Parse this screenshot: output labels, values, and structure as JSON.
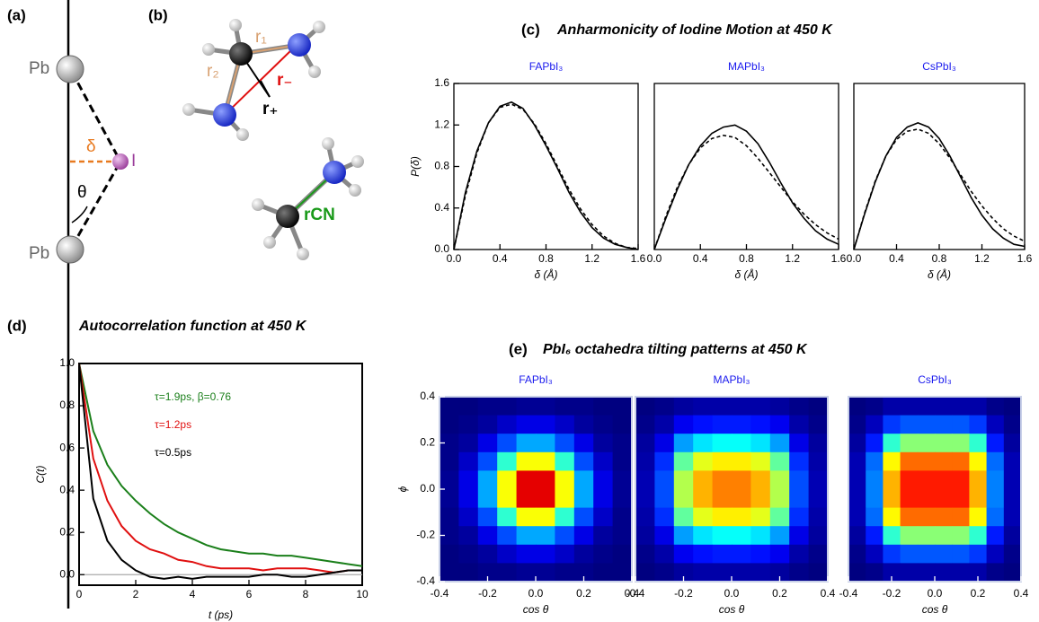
{
  "panel_labels": [
    "(a)",
    "(b)",
    "(c)",
    "(d)",
    "(e)"
  ],
  "section_titles": [
    "Anharmonicity of Iodine Motion at 450 K",
    "Autocorrelation function at 450 K",
    "PbI₆ octahedra tilting patterns at 450 K"
  ],
  "diagram_a": {
    "labels": [
      "Pb",
      "Pb",
      "δ",
      "I",
      "θ"
    ]
  },
  "diagram_b": {
    "labels": [
      "r₁",
      "r₂",
      "r₋",
      "r₊",
      "rCN"
    ]
  },
  "chart_data": [
    {
      "type": "line",
      "title": "FAPbI₃",
      "x_label": "δ (Å)",
      "y_label": "P(δ)",
      "x": [
        0,
        0.1,
        0.2,
        0.3,
        0.4,
        0.5,
        0.6,
        0.7,
        0.8,
        0.9,
        1.0,
        1.1,
        1.2,
        1.3,
        1.4,
        1.5,
        1.6
      ],
      "series": [
        {
          "color": "#000000",
          "style": "solid",
          "values": [
            0,
            0.55,
            0.95,
            1.22,
            1.38,
            1.42,
            1.36,
            1.2,
            1.0,
            0.78,
            0.55,
            0.36,
            0.21,
            0.11,
            0.05,
            0.02,
            0.0
          ]
        },
        {
          "color": "#000000",
          "style": "dashed",
          "values": [
            0,
            0.52,
            0.93,
            1.22,
            1.37,
            1.4,
            1.35,
            1.21,
            1.02,
            0.8,
            0.58,
            0.39,
            0.24,
            0.13,
            0.06,
            0.02,
            0.01
          ]
        }
      ],
      "xlim": [
        0,
        1.6
      ],
      "xticks": [
        {
          "value": 0,
          "label": "0.0"
        },
        0.4,
        0.8,
        1.2,
        1.6
      ],
      "ylim": [
        0,
        1.6
      ],
      "yticks": [
        {
          "value": 0,
          "label": "0.0"
        },
        0.4,
        0.8,
        1.2,
        1.6
      ]
    },
    {
      "type": "line",
      "title": "MAPbI₃",
      "x_label": "δ (Å)",
      "x": [
        0,
        0.1,
        0.2,
        0.3,
        0.4,
        0.5,
        0.6,
        0.7,
        0.8,
        0.9,
        1.0,
        1.1,
        1.2,
        1.3,
        1.4,
        1.5,
        1.6
      ],
      "series": [
        {
          "color": "#000000",
          "style": "solid",
          "values": [
            0,
            0.3,
            0.58,
            0.82,
            1.0,
            1.12,
            1.18,
            1.2,
            1.14,
            1.02,
            0.84,
            0.64,
            0.45,
            0.3,
            0.18,
            0.1,
            0.05
          ]
        },
        {
          "color": "#000000",
          "style": "dashed",
          "values": [
            0,
            0.32,
            0.6,
            0.82,
            0.98,
            1.07,
            1.1,
            1.08,
            1.0,
            0.88,
            0.74,
            0.6,
            0.46,
            0.34,
            0.24,
            0.16,
            0.1
          ]
        }
      ],
      "xlim": [
        0,
        1.6
      ],
      "xticks": [
        {
          "value": 0,
          "label": "0.0"
        },
        0.4,
        0.8,
        1.2,
        1.6
      ],
      "ylim": [
        0,
        1.6
      ]
    },
    {
      "type": "line",
      "title": "CsPbI₃",
      "x_label": "δ (Å)",
      "x": [
        0,
        0.1,
        0.2,
        0.3,
        0.4,
        0.5,
        0.6,
        0.7,
        0.8,
        0.9,
        1.0,
        1.1,
        1.2,
        1.3,
        1.4,
        1.5,
        1.6
      ],
      "series": [
        {
          "color": "#000000",
          "style": "solid",
          "values": [
            0,
            0.34,
            0.65,
            0.9,
            1.08,
            1.18,
            1.22,
            1.18,
            1.07,
            0.9,
            0.7,
            0.5,
            0.33,
            0.2,
            0.11,
            0.05,
            0.03
          ]
        },
        {
          "color": "#000000",
          "style": "dashed",
          "values": [
            0,
            0.35,
            0.66,
            0.9,
            1.06,
            1.14,
            1.16,
            1.12,
            1.02,
            0.88,
            0.72,
            0.56,
            0.42,
            0.3,
            0.2,
            0.13,
            0.08
          ]
        }
      ],
      "xlim": [
        0,
        1.6
      ],
      "xticks": [
        {
          "value": 0,
          "label": "0.0"
        },
        0.4,
        0.8,
        1.2,
        1.6
      ],
      "ylim": [
        0,
        1.6
      ]
    },
    {
      "type": "line",
      "x_label": "t (ps)",
      "y_label": "C(t)",
      "x": [
        0,
        0.5,
        1,
        1.5,
        2,
        2.5,
        3,
        3.5,
        4,
        4.5,
        5,
        5.5,
        6,
        6.5,
        7,
        7.5,
        8,
        8.5,
        9,
        9.5,
        10
      ],
      "series": [
        {
          "color": "#1a7f1a",
          "style": "solid",
          "values": [
            1,
            0.68,
            0.52,
            0.42,
            0.35,
            0.29,
            0.24,
            0.2,
            0.17,
            0.14,
            0.12,
            0.11,
            0.1,
            0.1,
            0.09,
            0.09,
            0.08,
            0.07,
            0.06,
            0.05,
            0.04
          ]
        },
        {
          "color": "#e01010",
          "style": "solid",
          "values": [
            1,
            0.55,
            0.35,
            0.23,
            0.16,
            0.12,
            0.1,
            0.07,
            0.06,
            0.04,
            0.03,
            0.03,
            0.03,
            0.02,
            0.03,
            0.03,
            0.03,
            0.02,
            0.01,
            0.02,
            0.02
          ]
        },
        {
          "color": "#000000",
          "style": "solid",
          "values": [
            1,
            0.36,
            0.16,
            0.07,
            0.02,
            -0.01,
            -0.02,
            -0.01,
            -0.02,
            -0.01,
            -0.01,
            -0.01,
            -0.01,
            0.0,
            0.0,
            -0.01,
            -0.01,
            0.0,
            0.01,
            0.02,
            0.02
          ]
        }
      ],
      "annotations": [
        {
          "text": "τ=1.9ps, β=0.76",
          "color": "#1a7f1a"
        },
        {
          "text": "τ=1.2ps",
          "color": "#e01010"
        },
        {
          "text": "τ=0.5ps",
          "color": "#000000"
        }
      ],
      "xlim": [
        0,
        10
      ],
      "xticks": [
        0,
        2,
        4,
        6,
        8,
        10
      ],
      "ylim": [
        -0.05,
        1.0
      ],
      "yticks": [
        {
          "value": 0,
          "label": "0.0"
        },
        0.2,
        0.4,
        0.6,
        0.8,
        {
          "value": 1,
          "label": "1.0"
        }
      ]
    },
    {
      "type": "heatmap",
      "title": "FAPbI₃",
      "x_label": "cos θ",
      "y_label": "ϕ",
      "xlim": [
        -0.4,
        0.4
      ],
      "xticks": [
        -0.4,
        -0.2,
        {
          "value": 0,
          "label": "0.0"
        },
        0.2,
        0.4
      ],
      "ylim": [
        -0.4,
        0.4
      ],
      "yticks": [
        -0.4,
        -0.2,
        {
          "value": 0,
          "label": "0.0"
        },
        0.2,
        0.4
      ],
      "z": [
        [
          0,
          0,
          0.01,
          0.01,
          0.02,
          0.02,
          0.01,
          0.01,
          0,
          0
        ],
        [
          0,
          0.01,
          0.03,
          0.07,
          0.1,
          0.1,
          0.07,
          0.03,
          0.01,
          0
        ],
        [
          0.01,
          0.03,
          0.1,
          0.2,
          0.29,
          0.29,
          0.2,
          0.1,
          0.03,
          0.01
        ],
        [
          0.01,
          0.07,
          0.2,
          0.42,
          0.62,
          0.62,
          0.42,
          0.2,
          0.07,
          0.01
        ],
        [
          0.02,
          0.1,
          0.29,
          0.62,
          0.9,
          0.9,
          0.62,
          0.29,
          0.1,
          0.02
        ],
        [
          0.02,
          0.1,
          0.29,
          0.62,
          0.9,
          0.9,
          0.62,
          0.29,
          0.1,
          0.02
        ],
        [
          0.01,
          0.07,
          0.2,
          0.42,
          0.62,
          0.62,
          0.42,
          0.2,
          0.07,
          0.01
        ],
        [
          0.01,
          0.03,
          0.1,
          0.2,
          0.29,
          0.29,
          0.2,
          0.1,
          0.03,
          0.01
        ],
        [
          0,
          0.01,
          0.03,
          0.07,
          0.1,
          0.1,
          0.07,
          0.03,
          0.01,
          0
        ],
        [
          0,
          0,
          0.01,
          0.01,
          0.02,
          0.02,
          0.01,
          0.01,
          0,
          0
        ]
      ]
    },
    {
      "type": "heatmap",
      "title": "MAPbI₃",
      "x_label": "cos θ",
      "xlim": [
        -0.4,
        0.4
      ],
      "xticks": [
        -0.4,
        -0.2,
        {
          "value": 0,
          "label": "0.0"
        },
        0.2,
        0.4
      ],
      "ylim": [
        -0.4,
        0.4
      ],
      "z": [
        [
          0,
          0.01,
          0.03,
          0.04,
          0.04,
          0.04,
          0.04,
          0.03,
          0.01,
          0
        ],
        [
          0.01,
          0.04,
          0.11,
          0.14,
          0.15,
          0.15,
          0.14,
          0.11,
          0.04,
          0.01
        ],
        [
          0.03,
          0.1,
          0.28,
          0.35,
          0.38,
          0.38,
          0.35,
          0.28,
          0.1,
          0.03
        ],
        [
          0.04,
          0.17,
          0.47,
          0.6,
          0.64,
          0.64,
          0.6,
          0.47,
          0.17,
          0.04
        ],
        [
          0.05,
          0.2,
          0.55,
          0.7,
          0.75,
          0.75,
          0.7,
          0.55,
          0.2,
          0.05
        ],
        [
          0.05,
          0.2,
          0.55,
          0.7,
          0.75,
          0.75,
          0.7,
          0.55,
          0.2,
          0.05
        ],
        [
          0.04,
          0.17,
          0.47,
          0.6,
          0.64,
          0.64,
          0.6,
          0.47,
          0.17,
          0.04
        ],
        [
          0.03,
          0.1,
          0.28,
          0.35,
          0.38,
          0.38,
          0.35,
          0.28,
          0.1,
          0.03
        ],
        [
          0.01,
          0.04,
          0.11,
          0.14,
          0.15,
          0.15,
          0.14,
          0.11,
          0.04,
          0.01
        ],
        [
          0,
          0.01,
          0.03,
          0.04,
          0.04,
          0.04,
          0.04,
          0.03,
          0.01,
          0
        ]
      ]
    },
    {
      "type": "heatmap",
      "title": "CsPbI₃",
      "x_label": "cos θ",
      "xlim": [
        -0.4,
        0.4
      ],
      "xticks": [
        -0.4,
        -0.2,
        {
          "value": 0,
          "label": "0.0"
        },
        0.2,
        0.4
      ],
      "ylim": [
        -0.4,
        0.4
      ],
      "z": [
        [
          0,
          0.01,
          0.04,
          0.04,
          0.04,
          0.04,
          0.04,
          0.04,
          0.01,
          0
        ],
        [
          0.01,
          0.06,
          0.18,
          0.21,
          0.21,
          0.21,
          0.21,
          0.18,
          0.06,
          0.01
        ],
        [
          0.03,
          0.15,
          0.42,
          0.51,
          0.51,
          0.51,
          0.51,
          0.42,
          0.15,
          0.03
        ],
        [
          0.05,
          0.23,
          0.63,
          0.77,
          0.77,
          0.77,
          0.77,
          0.63,
          0.23,
          0.05
        ],
        [
          0.05,
          0.25,
          0.7,
          0.85,
          0.85,
          0.85,
          0.85,
          0.7,
          0.25,
          0.05
        ],
        [
          0.05,
          0.25,
          0.7,
          0.85,
          0.85,
          0.85,
          0.85,
          0.7,
          0.25,
          0.05
        ],
        [
          0.05,
          0.23,
          0.63,
          0.77,
          0.77,
          0.77,
          0.77,
          0.63,
          0.23,
          0.05
        ],
        [
          0.03,
          0.15,
          0.42,
          0.51,
          0.51,
          0.51,
          0.51,
          0.42,
          0.15,
          0.03
        ],
        [
          0.01,
          0.06,
          0.18,
          0.21,
          0.21,
          0.21,
          0.21,
          0.18,
          0.06,
          0.01
        ],
        [
          0,
          0.01,
          0.04,
          0.04,
          0.04,
          0.04,
          0.04,
          0.04,
          0.01,
          0
        ]
      ]
    }
  ]
}
